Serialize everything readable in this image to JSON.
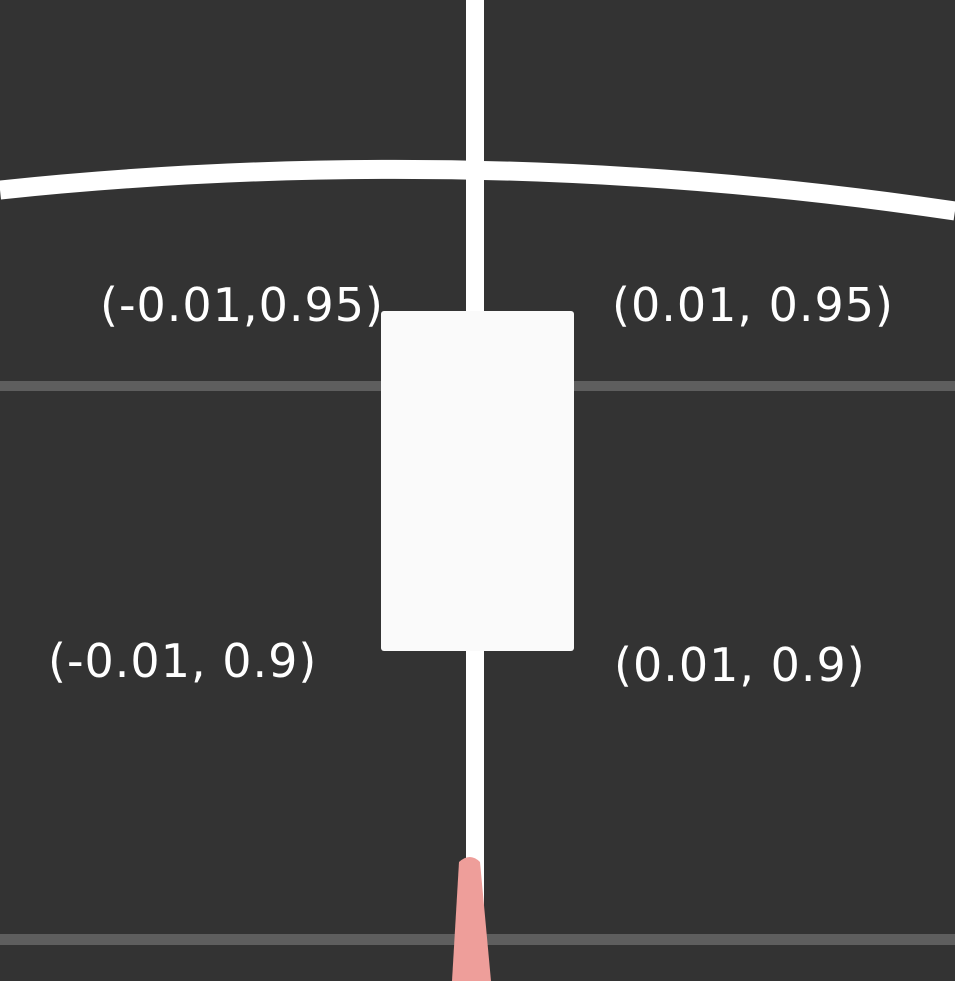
{
  "corners": {
    "top_left": "(-0.01,0.95)",
    "top_right": "(0.01, 0.95)",
    "bottom_left": "(-0.01, 0.9)",
    "bottom_right": "(0.01, 0.9)"
  },
  "colors": {
    "background": "#333333",
    "lines": "#ffffff",
    "gridlines": "#5e5e5e",
    "box": "#fafafa",
    "pointer": "#ee9e9a"
  }
}
